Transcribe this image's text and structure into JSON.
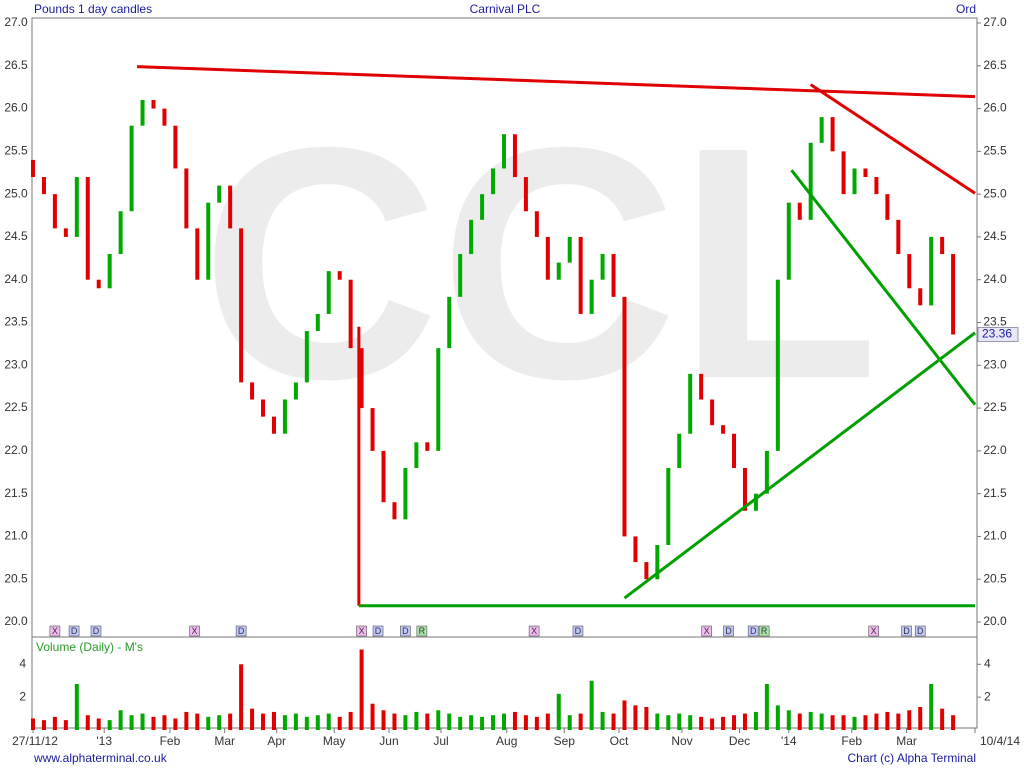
{
  "chart_data": {
    "type": "candlestick",
    "subtitle": "Pounds 1 day candles",
    "title": "Carnival PLC",
    "instrument_class": "Ord",
    "watermark": "CCL",
    "up_color": "#00a800",
    "down_color": "#e00000",
    "x": [
      0,
      4,
      8,
      12,
      16,
      20,
      24,
      28,
      32,
      36,
      40,
      44,
      48,
      52,
      56,
      60,
      64,
      68,
      72,
      76,
      80,
      84,
      88,
      92,
      96,
      100,
      104,
      108,
      112,
      116,
      120,
      124,
      128,
      132,
      136,
      140,
      144,
      148,
      152,
      156,
      160,
      164,
      168,
      172,
      176,
      180,
      184,
      188,
      192,
      196,
      200,
      204,
      208,
      212,
      216,
      220,
      224,
      228,
      232,
      236,
      240,
      244,
      248,
      252,
      256,
      260,
      264,
      268,
      272,
      276,
      280,
      284,
      288,
      292,
      296,
      300,
      304,
      308,
      312,
      316,
      320,
      324,
      328,
      332,
      336
    ],
    "open": [
      25.4,
      25.2,
      25.0,
      24.6,
      24.5,
      25.2,
      24.0,
      23.9,
      24.3,
      24.8,
      25.8,
      26.1,
      26.0,
      25.8,
      25.3,
      24.6,
      24.0,
      24.9,
      25.1,
      24.6,
      22.8,
      22.6,
      22.4,
      22.2,
      22.6,
      22.8,
      23.4,
      23.6,
      24.1,
      24.0,
      23.2,
      22.5,
      22.0,
      21.4,
      21.2,
      21.8,
      22.1,
      22.0,
      23.2,
      23.8,
      24.3,
      24.7,
      25.0,
      25.3,
      25.7,
      25.2,
      24.8,
      24.5,
      24.0,
      24.2,
      24.5,
      23.6,
      24.0,
      24.3,
      23.8,
      21.0,
      20.7,
      20.5,
      20.9,
      21.8,
      22.2,
      22.9,
      22.6,
      22.3,
      22.2,
      21.8,
      21.3,
      21.5,
      22.0,
      24.0,
      24.9,
      24.7,
      25.6,
      25.9,
      25.5,
      25.0,
      25.3,
      25.2,
      25.0,
      24.7,
      24.3,
      23.9,
      23.7,
      24.5,
      24.3
    ],
    "close": [
      25.2,
      25.0,
      24.6,
      24.5,
      25.2,
      24.0,
      23.9,
      24.3,
      24.8,
      25.8,
      26.1,
      26.0,
      25.8,
      25.3,
      24.6,
      24.0,
      24.9,
      25.1,
      24.6,
      22.8,
      22.6,
      22.4,
      22.2,
      22.6,
      22.8,
      23.4,
      23.6,
      24.1,
      24.0,
      23.2,
      22.5,
      22.0,
      21.4,
      21.2,
      21.8,
      22.1,
      22.0,
      23.2,
      23.8,
      24.3,
      24.7,
      25.0,
      25.3,
      25.7,
      25.2,
      24.8,
      24.5,
      24.0,
      24.2,
      24.5,
      23.6,
      24.0,
      24.3,
      23.8,
      21.0,
      20.7,
      20.5,
      20.9,
      21.8,
      22.2,
      22.9,
      22.6,
      22.3,
      22.2,
      21.8,
      21.3,
      21.5,
      22.0,
      24.0,
      24.9,
      24.7,
      25.6,
      25.9,
      25.5,
      25.0,
      25.3,
      25.2,
      25.0,
      24.7,
      24.3,
      23.9,
      23.7,
      24.5,
      24.3,
      23.36
    ],
    "xlim": [
      0,
      344
    ],
    "xticks": [
      {
        "value": 0,
        "label": "27/11/12"
      },
      {
        "value": 26,
        "label": "'13"
      },
      {
        "value": 50,
        "label": "Feb"
      },
      {
        "value": 70,
        "label": "Mar"
      },
      {
        "value": 89,
        "label": "Apr"
      },
      {
        "value": 110,
        "label": "May"
      },
      {
        "value": 130,
        "label": "Jun"
      },
      {
        "value": 149,
        "label": "Jul"
      },
      {
        "value": 173,
        "label": "Aug"
      },
      {
        "value": 194,
        "label": "Sep"
      },
      {
        "value": 214,
        "label": "Oct"
      },
      {
        "value": 237,
        "label": "Nov"
      },
      {
        "value": 258,
        "label": "Dec"
      },
      {
        "value": 276,
        "label": "'14"
      },
      {
        "value": 299,
        "label": "Feb"
      },
      {
        "value": 319,
        "label": "Mar"
      },
      {
        "value": 344,
        "label": "10/4/14"
      }
    ],
    "ylim": [
      20,
      27
    ],
    "yticks": [
      {
        "value": 20,
        "label": "20.0"
      },
      20.5,
      {
        "value": 21,
        "label": "21.0"
      },
      21.5,
      {
        "value": 22,
        "label": "22.0"
      },
      22.5,
      {
        "value": 23,
        "label": "23.0"
      },
      23.5,
      {
        "value": 24,
        "label": "24.0"
      },
      24.5,
      {
        "value": 25,
        "label": "25.0"
      },
      25.5,
      {
        "value": 26,
        "label": "26.0"
      },
      26.5,
      {
        "value": 27,
        "label": "27.0"
      }
    ],
    "trendlines": [
      {
        "color": "#e00000",
        "x": [
          38,
          344
        ],
        "y": [
          26.49,
          26.14
        ]
      },
      {
        "color": "#e00000",
        "x": [
          284,
          344
        ],
        "y": [
          26.28,
          25.01
        ]
      },
      {
        "color": "#e00000",
        "x": [
          119,
          119
        ],
        "y": [
          23.45,
          20.19
        ]
      },
      {
        "color": "#00a000",
        "x": [
          119,
          344
        ],
        "y": [
          20.19,
          20.19
        ]
      },
      {
        "color": "#00a000",
        "x": [
          216,
          344
        ],
        "y": [
          20.28,
          23.38
        ]
      },
      {
        "color": "#00a000",
        "x": [
          277,
          344
        ],
        "y": [
          25.28,
          22.54
        ]
      }
    ],
    "event_colors": {
      "X": "#f4b8f4",
      "D": "#c0c8ff",
      "R": "#a8e8a8"
    },
    "events": [
      {
        "x": 8,
        "label": "X"
      },
      {
        "x": 15,
        "label": "D"
      },
      {
        "x": 23,
        "label": "D"
      },
      {
        "x": 59,
        "label": "X"
      },
      {
        "x": 76,
        "label": "D"
      },
      {
        "x": 120,
        "label": "X"
      },
      {
        "x": 126,
        "label": "D"
      },
      {
        "x": 136,
        "label": "D"
      },
      {
        "x": 142,
        "label": "R"
      },
      {
        "x": 183,
        "label": "X"
      },
      {
        "x": 199,
        "label": "D"
      },
      {
        "x": 246,
        "label": "X"
      },
      {
        "x": 254,
        "label": "D"
      },
      {
        "x": 263,
        "label": "D"
      },
      {
        "x": 267,
        "label": "R"
      },
      {
        "x": 307,
        "label": "X"
      },
      {
        "x": 319,
        "label": "D"
      },
      {
        "x": 324,
        "label": "D"
      }
    ],
    "volume": {
      "title": "Volume (Daily) - M's",
      "values": [
        0.7,
        0.6,
        0.8,
        0.6,
        2.8,
        0.9,
        0.7,
        0.6,
        1.2,
        0.9,
        1.0,
        0.8,
        0.9,
        0.7,
        1.1,
        1.0,
        0.8,
        0.9,
        1.0,
        4.0,
        1.3,
        1.0,
        1.1,
        0.9,
        1.0,
        0.8,
        0.9,
        1.0,
        0.8,
        1.1,
        4.9,
        1.6,
        1.2,
        1.0,
        0.9,
        1.1,
        1.0,
        1.2,
        1.0,
        0.8,
        0.9,
        0.8,
        0.9,
        1.0,
        1.1,
        0.9,
        0.8,
        1.0,
        2.2,
        0.9,
        1.0,
        3.0,
        1.1,
        1.0,
        1.8,
        1.5,
        1.4,
        1.0,
        0.9,
        1.0,
        0.9,
        0.8,
        0.7,
        0.8,
        0.9,
        1.0,
        1.1,
        2.8,
        1.5,
        1.2,
        1.0,
        1.1,
        1.0,
        0.9,
        0.9,
        0.8,
        0.9,
        1.0,
        1.1,
        1.0,
        1.2,
        1.4,
        2.8,
        1.3,
        0.9
      ],
      "ylim": [
        0,
        5.6
      ],
      "yticks": [
        2,
        4
      ]
    },
    "footer_left": "www.alphaterminal.co.uk",
    "footer_right": "Chart (c) Alpha Terminal"
  }
}
